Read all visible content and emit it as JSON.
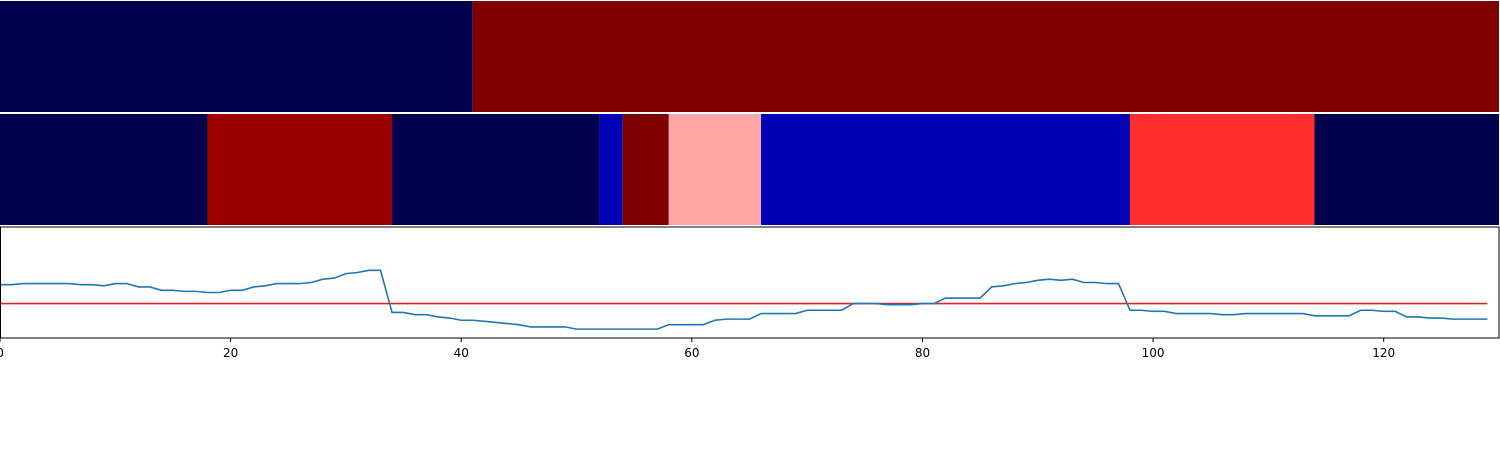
{
  "chart_data": [
    {
      "type": "heatmap",
      "title": "",
      "x_range": [
        0,
        130
      ],
      "segments": [
        {
          "start": 0,
          "end": 41,
          "color": "#00004c"
        },
        {
          "start": 41,
          "end": 130,
          "color": "#7f0000"
        }
      ]
    },
    {
      "type": "heatmap",
      "title": "",
      "x_range": [
        0,
        130
      ],
      "segments": [
        {
          "start": 0,
          "end": 18,
          "color": "#00004c"
        },
        {
          "start": 18,
          "end": 34,
          "color": "#9a0000"
        },
        {
          "start": 34,
          "end": 52,
          "color": "#00004c"
        },
        {
          "start": 52,
          "end": 54,
          "color": "#0000b5"
        },
        {
          "start": 54,
          "end": 58,
          "color": "#7f0000"
        },
        {
          "start": 58,
          "end": 66,
          "color": "#ffa6a6"
        },
        {
          "start": 66,
          "end": 98,
          "color": "#0000b5"
        },
        {
          "start": 98,
          "end": 114,
          "color": "#ff2e2e"
        },
        {
          "start": 114,
          "end": 130,
          "color": "#00004c"
        }
      ]
    },
    {
      "type": "line",
      "title": "",
      "xlabel": "",
      "ylabel": "",
      "xlim": [
        0,
        130
      ],
      "ylim": [
        0,
        1
      ],
      "x_ticks": [
        0,
        20,
        40,
        60,
        80,
        100,
        120
      ],
      "series": [
        {
          "color": "#1f77b4",
          "points": [
            [
              0,
              0.48
            ],
            [
              1,
              0.48
            ],
            [
              2,
              0.49
            ],
            [
              3,
              0.49
            ],
            [
              4,
              0.49
            ],
            [
              5,
              0.49
            ],
            [
              6,
              0.49
            ],
            [
              7,
              0.48
            ],
            [
              8,
              0.48
            ],
            [
              9,
              0.47
            ],
            [
              10,
              0.49
            ],
            [
              11,
              0.49
            ],
            [
              12,
              0.46
            ],
            [
              13,
              0.46
            ],
            [
              14,
              0.43
            ],
            [
              15,
              0.43
            ],
            [
              16,
              0.42
            ],
            [
              17,
              0.42
            ],
            [
              18,
              0.41
            ],
            [
              19,
              0.41
            ],
            [
              20,
              0.43
            ],
            [
              21,
              0.43
            ],
            [
              22,
              0.46
            ],
            [
              23,
              0.47
            ],
            [
              24,
              0.49
            ],
            [
              25,
              0.49
            ],
            [
              26,
              0.49
            ],
            [
              27,
              0.5
            ],
            [
              28,
              0.53
            ],
            [
              29,
              0.54
            ],
            [
              30,
              0.58
            ],
            [
              31,
              0.59
            ],
            [
              32,
              0.61
            ],
            [
              33,
              0.61
            ],
            [
              34,
              0.23
            ],
            [
              35,
              0.23
            ],
            [
              36,
              0.21
            ],
            [
              37,
              0.21
            ],
            [
              38,
              0.19
            ],
            [
              39,
              0.18
            ],
            [
              40,
              0.16
            ],
            [
              41,
              0.16
            ],
            [
              42,
              0.15
            ],
            [
              43,
              0.14
            ],
            [
              44,
              0.13
            ],
            [
              45,
              0.12
            ],
            [
              46,
              0.1
            ],
            [
              47,
              0.1
            ],
            [
              48,
              0.1
            ],
            [
              49,
              0.1
            ],
            [
              50,
              0.08
            ],
            [
              51,
              0.08
            ],
            [
              52,
              0.08
            ],
            [
              53,
              0.08
            ],
            [
              54,
              0.08
            ],
            [
              55,
              0.08
            ],
            [
              56,
              0.08
            ],
            [
              57,
              0.08
            ],
            [
              58,
              0.12
            ],
            [
              59,
              0.12
            ],
            [
              60,
              0.12
            ],
            [
              61,
              0.12
            ],
            [
              62,
              0.16
            ],
            [
              63,
              0.17
            ],
            [
              64,
              0.17
            ],
            [
              65,
              0.17
            ],
            [
              66,
              0.22
            ],
            [
              67,
              0.22
            ],
            [
              68,
              0.22
            ],
            [
              69,
              0.22
            ],
            [
              70,
              0.25
            ],
            [
              71,
              0.25
            ],
            [
              72,
              0.25
            ],
            [
              73,
              0.25
            ],
            [
              74,
              0.31
            ],
            [
              75,
              0.31
            ],
            [
              76,
              0.31
            ],
            [
              77,
              0.3
            ],
            [
              78,
              0.3
            ],
            [
              79,
              0.3
            ],
            [
              80,
              0.31
            ],
            [
              81,
              0.31
            ],
            [
              82,
              0.36
            ],
            [
              83,
              0.36
            ],
            [
              84,
              0.36
            ],
            [
              85,
              0.36
            ],
            [
              86,
              0.46
            ],
            [
              87,
              0.47
            ],
            [
              88,
              0.49
            ],
            [
              89,
              0.5
            ],
            [
              90,
              0.52
            ],
            [
              91,
              0.53
            ],
            [
              92,
              0.52
            ],
            [
              93,
              0.53
            ],
            [
              94,
              0.5
            ],
            [
              95,
              0.5
            ],
            [
              96,
              0.49
            ],
            [
              97,
              0.49
            ],
            [
              98,
              0.25
            ],
            [
              99,
              0.25
            ],
            [
              100,
              0.24
            ],
            [
              101,
              0.24
            ],
            [
              102,
              0.22
            ],
            [
              103,
              0.22
            ],
            [
              104,
              0.22
            ],
            [
              105,
              0.22
            ],
            [
              106,
              0.21
            ],
            [
              107,
              0.21
            ],
            [
              108,
              0.22
            ],
            [
              109,
              0.22
            ],
            [
              110,
              0.22
            ],
            [
              111,
              0.22
            ],
            [
              112,
              0.22
            ],
            [
              113,
              0.22
            ],
            [
              114,
              0.2
            ],
            [
              115,
              0.2
            ],
            [
              116,
              0.2
            ],
            [
              117,
              0.2
            ],
            [
              118,
              0.25
            ],
            [
              119,
              0.25
            ],
            [
              120,
              0.24
            ],
            [
              121,
              0.24
            ],
            [
              122,
              0.19
            ],
            [
              123,
              0.19
            ],
            [
              124,
              0.18
            ],
            [
              125,
              0.18
            ],
            [
              126,
              0.17
            ],
            [
              127,
              0.17
            ],
            [
              128,
              0.17
            ],
            [
              129,
              0.17
            ]
          ]
        },
        {
          "color": "#d62728",
          "points": [
            [
              0,
              0.31
            ],
            [
              129,
              0.31
            ]
          ]
        }
      ]
    }
  ]
}
